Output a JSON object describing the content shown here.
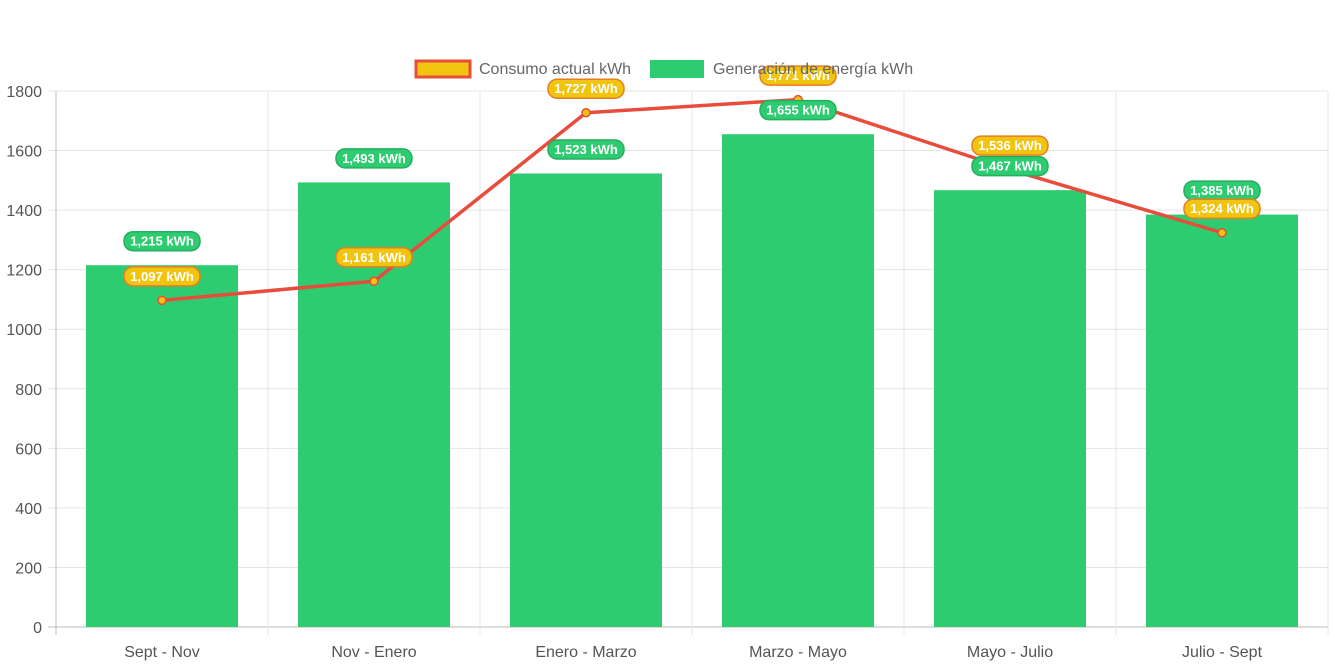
{
  "chart_data": {
    "type": "bar",
    "categories": [
      "Sept - Nov",
      "Nov - Enero",
      "Enero - Marzo",
      "Marzo - Mayo",
      "Mayo - Julio",
      "Julio - Sept"
    ],
    "series": [
      {
        "name": "Generación de energía kWh",
        "type": "bar",
        "values": [
          1215,
          1493,
          1523,
          1655,
          1467,
          1385
        ],
        "labels": [
          "1,215 kWh",
          "1,493 kWh",
          "1,523 kWh",
          "1,655 kWh",
          "1,467 kWh",
          "1,385 kWh"
        ],
        "color": "#2ecc71"
      },
      {
        "name": "Consumo actual kWh",
        "type": "line",
        "values": [
          1097,
          1161,
          1727,
          1771,
          1536,
          1324
        ],
        "labels": [
          "1,097 kWh",
          "1,161 kWh",
          "1,727 kWh",
          "1,771 kWh",
          "1,536 kWh",
          "1,324 kWh"
        ],
        "color": "#e74c3c",
        "fill_color": "#f1c40f"
      }
    ],
    "yticks": [
      "0",
      "200",
      "400",
      "600",
      "800",
      "1000",
      "1200",
      "1400",
      "1600",
      "1800"
    ],
    "ylim": [
      0,
      1800
    ],
    "legend_position": "top",
    "grid": true
  }
}
